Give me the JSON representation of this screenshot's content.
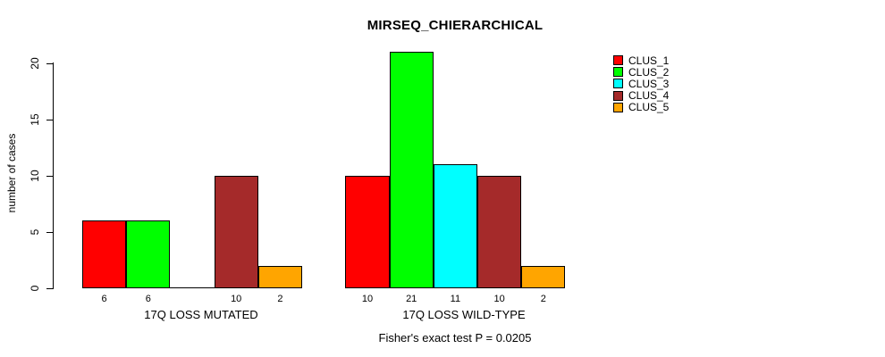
{
  "chart_data": {
    "type": "bar",
    "title": "MIRSEQ_CHIERARCHICAL",
    "ylabel": "number of cases",
    "xlabel": "",
    "groups": [
      "17Q LOSS MUTATED",
      "17Q LOSS WILD-TYPE"
    ],
    "series": [
      {
        "name": "CLUS_1",
        "color": "#FF0000",
        "values": [
          6,
          10
        ]
      },
      {
        "name": "CLUS_2",
        "color": "#00FF00",
        "values": [
          6,
          21
        ]
      },
      {
        "name": "CLUS_3",
        "color": "#00FFFF",
        "values": [
          0,
          11
        ]
      },
      {
        "name": "CLUS_4",
        "color": "#A52A2A",
        "values": [
          10,
          10
        ]
      },
      {
        "name": "CLUS_5",
        "color": "#FFA500",
        "values": [
          2,
          2
        ]
      }
    ],
    "bar_labels": [
      [
        "6",
        "6",
        "",
        "10",
        "2"
      ],
      [
        "10",
        "21",
        "11",
        "10",
        "2"
      ]
    ],
    "yticks": [
      0,
      5,
      10,
      15,
      20
    ],
    "ylim": [
      0,
      21
    ],
    "grid": false,
    "legend_position": "top-right",
    "legend_entries": [
      "CLUS_1",
      "CLUS_2",
      "CLUS_3",
      "CLUS_4",
      "CLUS_5"
    ],
    "annotation": "Fisher's exact test P = 0.0205",
    "bar_border_color": "#000000",
    "axis_color": "#000000",
    "background": "#FFFFFF"
  }
}
